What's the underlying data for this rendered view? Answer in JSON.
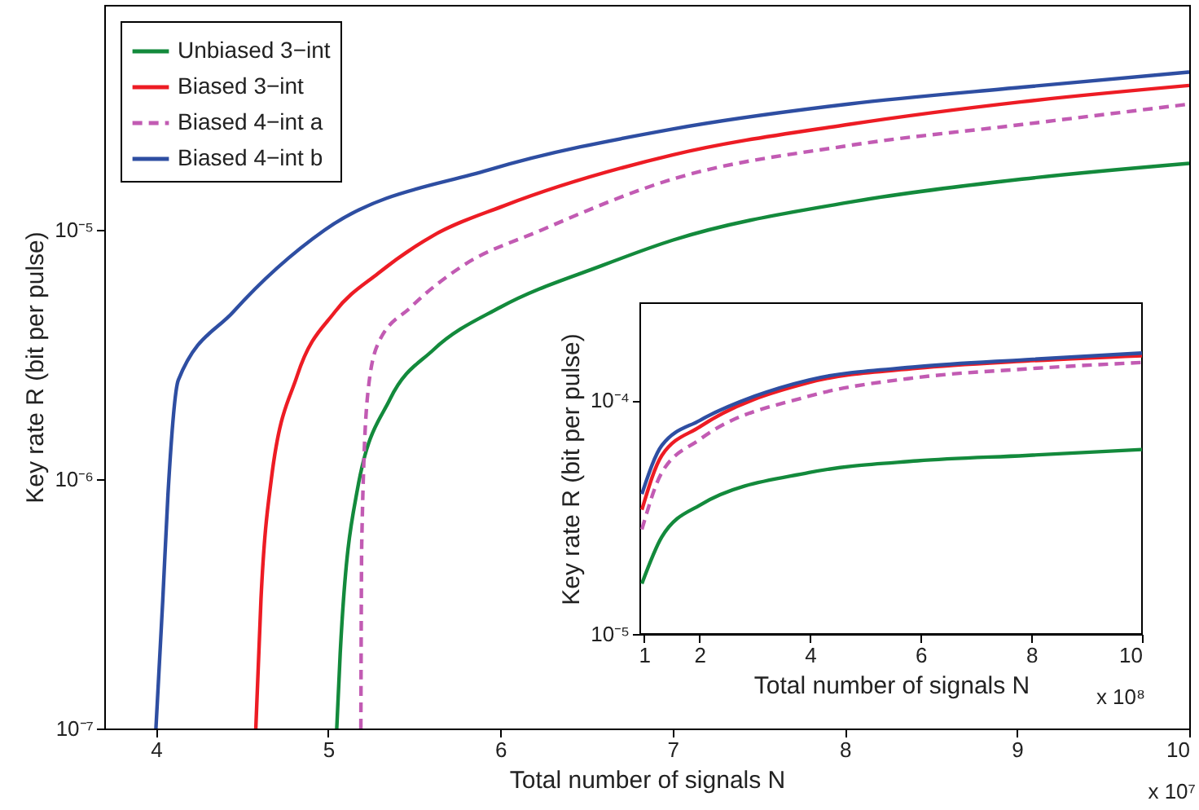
{
  "chart_data": [
    {
      "type": "line",
      "xlabel": "Total number of signals N",
      "ylabel": "Key rate R (bit per pulse)",
      "log": "y",
      "legend": "top left",
      "xlim": [
        3.7,
        10
      ],
      "xticks": [
        4,
        5,
        6,
        7,
        8,
        9,
        10
      ],
      "ylim": [
        1e-07,
        8e-05
      ],
      "yticks": [
        {
          "value": 1e-07,
          "label": "10⁻⁷"
        },
        {
          "value": 1e-06,
          "label": "10⁻⁶"
        },
        {
          "value": 1e-05,
          "label": "10⁻⁵"
        }
      ],
      "annotations": [
        "x 10⁷"
      ],
      "series": [
        {
          "name": "Unbiased 3−int",
          "color": "#138a3c",
          "x": [
            5.05,
            5.07,
            5.17,
            5.36,
            5.61,
            6.0,
            6.59,
            7.0,
            8.02,
            9.03,
            10
          ],
          "values": [
            1e-07,
            2e-07,
            9.1e-07,
            2.1e-06,
            3.3e-06,
            4.9e-06,
            7.2e-06,
            9.1e-06,
            1.29e-05,
            1.6e-05,
            1.85e-05
          ]
        },
        {
          "name": "Biased 3−int",
          "color": "#ed1c24",
          "x": [
            4.58,
            4.61,
            4.67,
            4.82,
            5.04,
            5.29,
            5.61,
            6.02,
            7.0,
            8.02,
            9.03,
            10
          ],
          "values": [
            1e-07,
            3.3e-07,
            1e-06,
            2.6e-06,
            4.7e-06,
            6.7e-06,
            9.5e-06,
            1.25e-05,
            2e-05,
            2.65e-05,
            3.27e-05,
            3.8e-05
          ]
        },
        {
          "name": "Biased 4−int a",
          "color": "#c25bb3",
          "line_style": "dashed",
          "x": [
            5.19,
            5.195,
            5.23,
            5.29,
            5.48,
            5.77,
            6.24,
            7.0,
            8.02,
            9.03,
            10
          ],
          "values": [
            1e-07,
            5.5e-07,
            2.2e-06,
            3.5e-06,
            4.9e-06,
            7.1e-06,
            1e-05,
            1.6e-05,
            2.18e-05,
            2.65e-05,
            3.2e-05
          ]
        },
        {
          "name": "Biased 4−int b",
          "color": "#2e4ea2",
          "x": [
            4.0,
            4.04,
            4.07,
            4.13,
            4.45,
            4.98,
            5.93,
            7.0,
            8.02,
            9.03,
            10
          ],
          "values": [
            1e-07,
            3.3e-07,
            8.7e-07,
            2.5e-06,
            4.7e-06,
            1e-05,
            1.74e-05,
            2.54e-05,
            3.2e-05,
            3.74e-05,
            4.3e-05
          ]
        }
      ]
    },
    {
      "type": "line",
      "xlabel": "Total number of signals N",
      "ylabel": "Key rate R (bit per pulse)",
      "log": "y",
      "xlim": [
        0.93,
        10
      ],
      "xticks": [
        1,
        2,
        4,
        6,
        8,
        10
      ],
      "ylim": [
        1e-05,
        0.00026
      ],
      "yticks": [
        {
          "value": 1e-05,
          "label": "10⁻⁵"
        },
        {
          "value": 0.0001,
          "label": "10⁻⁴"
        }
      ],
      "annotations": [
        "x 10⁸"
      ],
      "series": [
        {
          "color": "#138a3c",
          "x": [
            0.96,
            1.32,
            2.01,
            3.98,
            5.94,
            7.9,
            10
          ],
          "values": [
            1.64e-05,
            2.6e-05,
            3.56e-05,
            4.9e-05,
            5.5e-05,
            5.8e-05,
            6.15e-05
          ]
        },
        {
          "color": "#ed1c24",
          "x": [
            0.96,
            1.32,
            2.01,
            3.98,
            5.94,
            7.9,
            10
          ],
          "values": [
            3.4e-05,
            5.8e-05,
            7.7e-05,
            0.000119,
            0.000137,
            0.000147,
            0.000155
          ]
        },
        {
          "color": "#c25bb3",
          "line_style": "dashed",
          "x": [
            0.96,
            1.32,
            2.01,
            3.98,
            5.94,
            7.9,
            10
          ],
          "values": [
            2.8e-05,
            4.9e-05,
            6.8e-05,
            0.000104,
            0.000125,
            0.000136,
            0.000145
          ]
        },
        {
          "color": "#2e4ea2",
          "x": [
            0.96,
            1.32,
            2.01,
            3.0,
            3.98,
            5.94,
            7.9,
            10
          ],
          "values": [
            3.97e-05,
            6.4e-05,
            8.2e-05,
            0.000104,
            0.000122,
            0.000139,
            0.000149,
            0.000159
          ]
        }
      ]
    }
  ]
}
